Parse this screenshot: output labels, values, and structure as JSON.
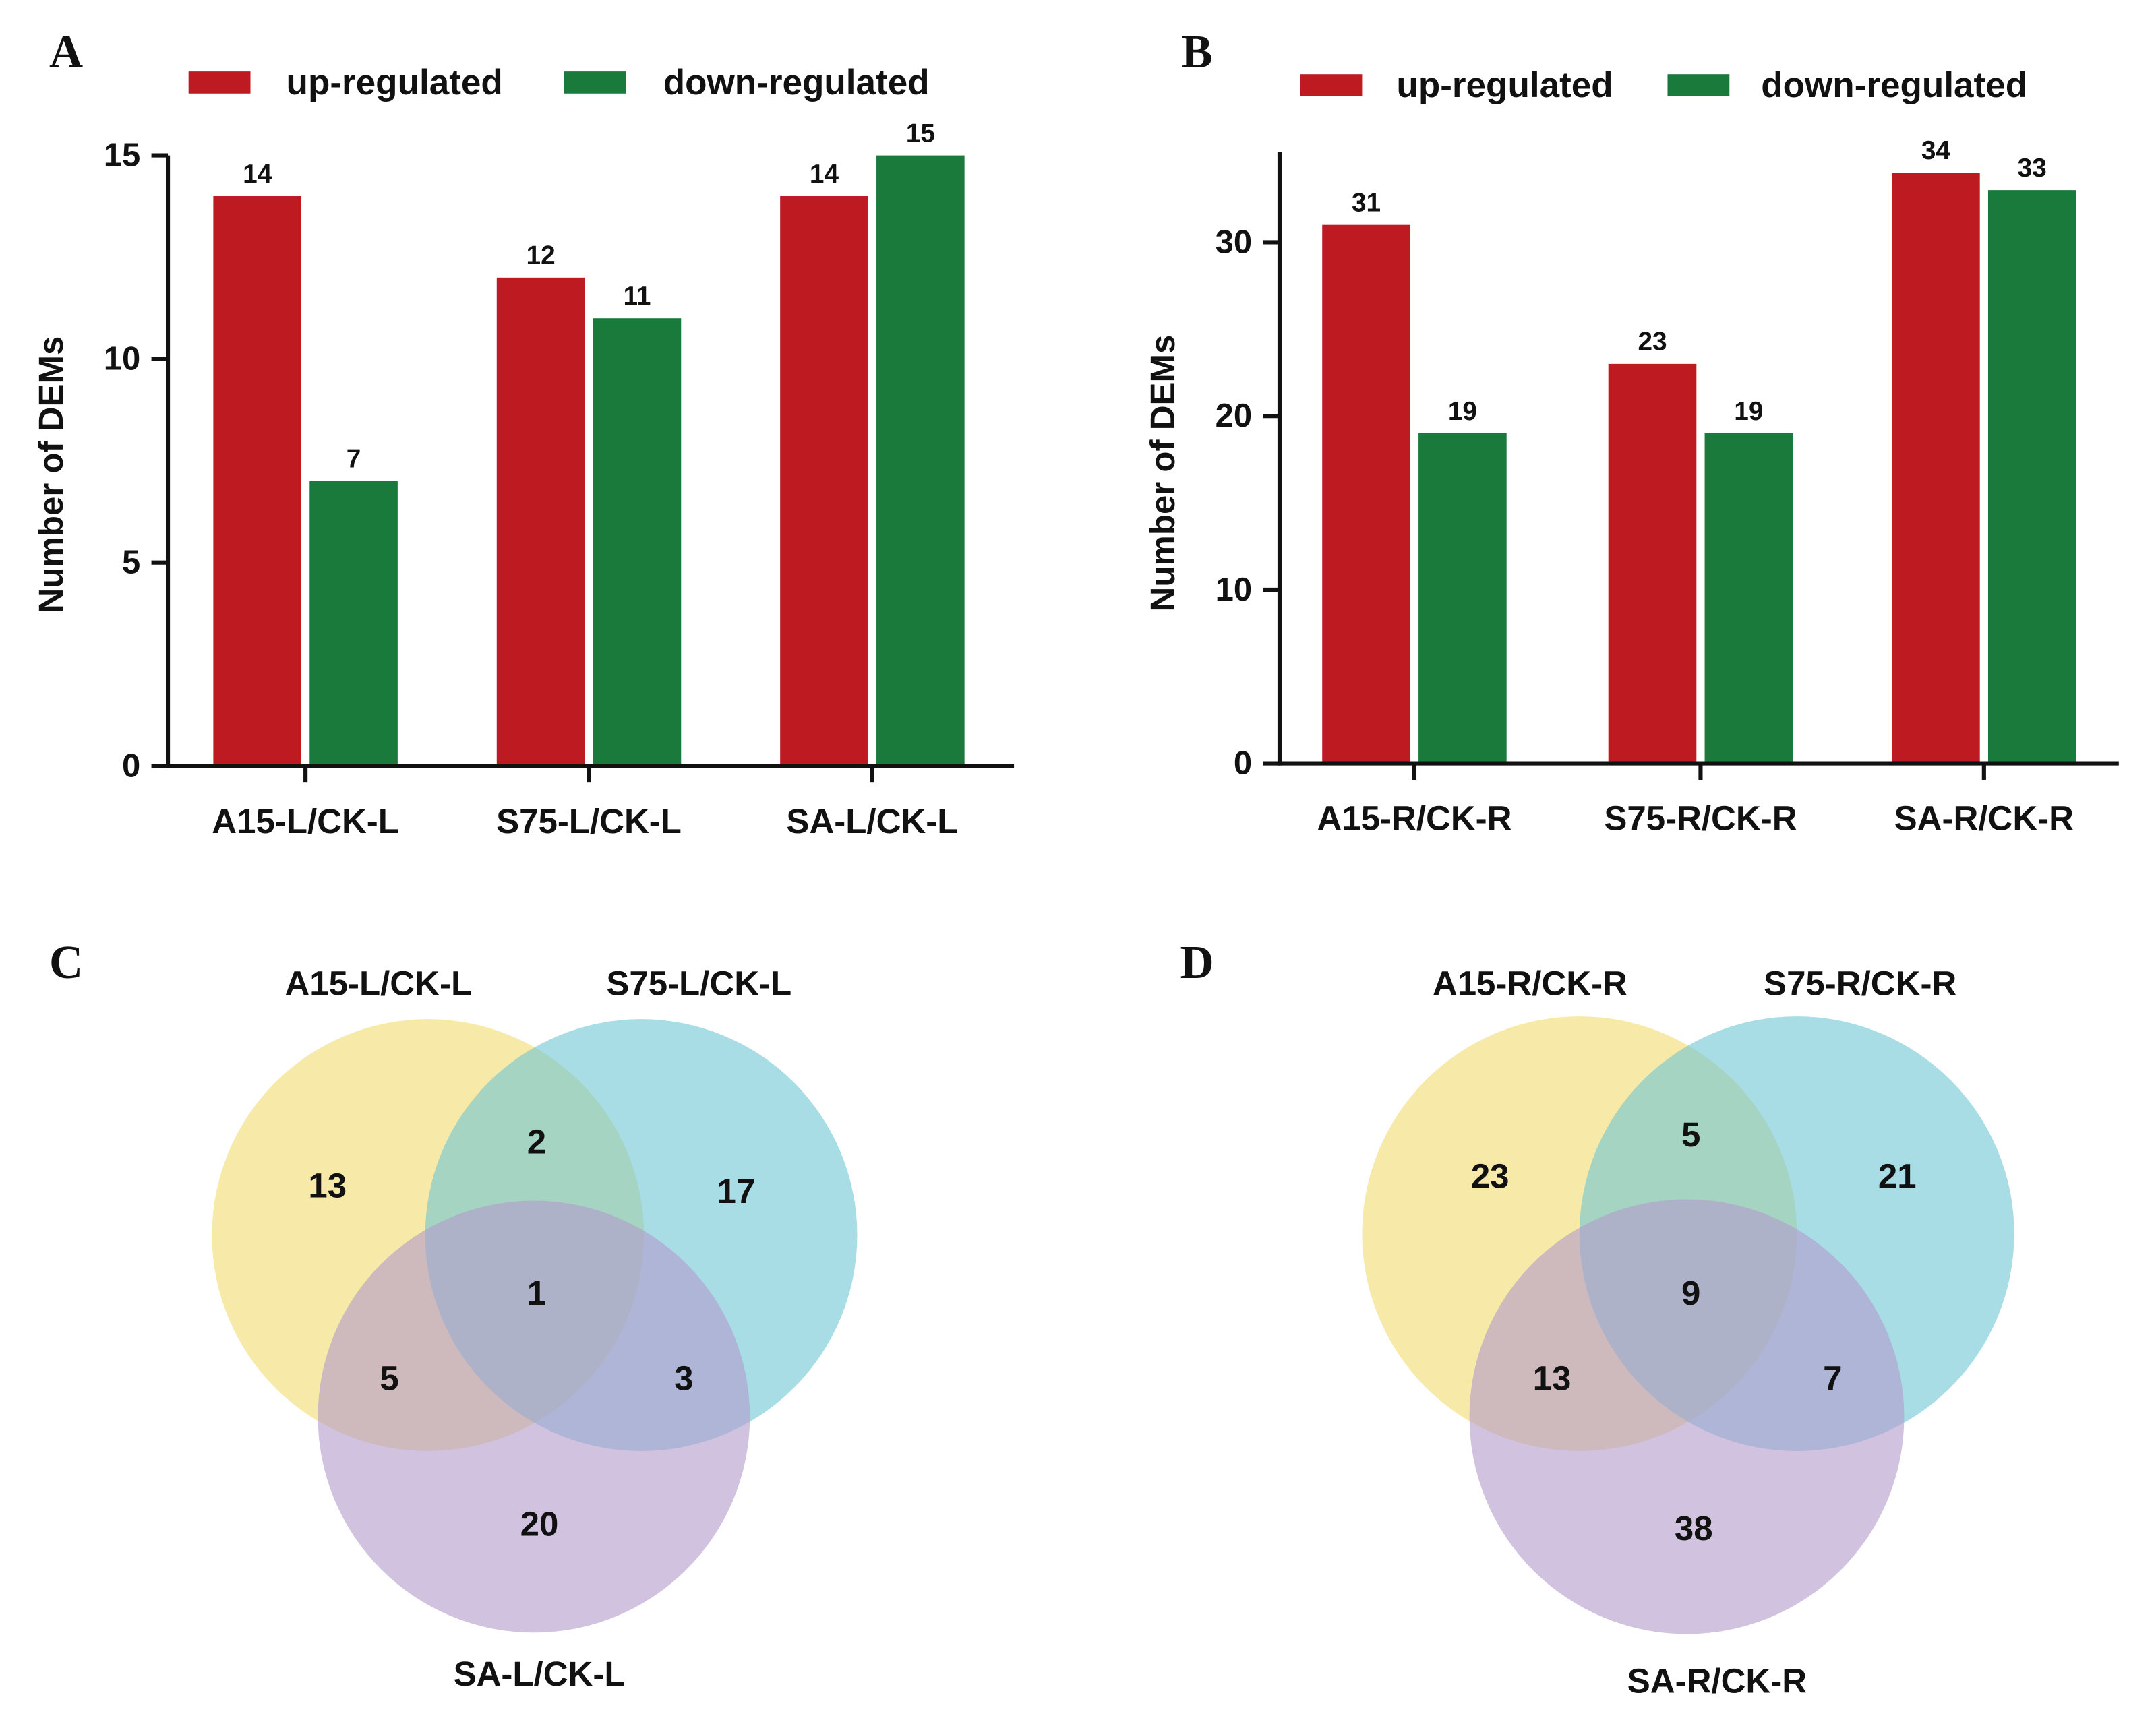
{
  "colors": {
    "up": "#BE1A22",
    "down": "#1A7A3B",
    "venn": [
      "#F2DA6E",
      "#6EC6D4",
      "#B39BCB"
    ]
  },
  "chart_data": [
    {
      "panel": "A",
      "type": "bar",
      "categories": [
        "A15-L/CK-L",
        "S75-L/CK-L",
        "SA-L/CK-L"
      ],
      "series": [
        {
          "name": "up-regulated",
          "values": [
            14,
            12,
            14
          ]
        },
        {
          "name": "down-regulated",
          "values": [
            7,
            11,
            15
          ]
        }
      ],
      "ylabel": "Number of DEMs",
      "ylim": [
        0,
        15
      ],
      "yticks": [
        0,
        5,
        10,
        15
      ],
      "legend": "top"
    },
    {
      "panel": "B",
      "type": "bar",
      "categories": [
        "A15-R/CK-R",
        "S75-R/CK-R",
        "SA-R/CK-R"
      ],
      "series": [
        {
          "name": "up-regulated",
          "values": [
            31,
            23,
            34
          ]
        },
        {
          "name": "down-regulated",
          "values": [
            19,
            19,
            33
          ]
        }
      ],
      "ylabel": "Number of DEMs",
      "ylim": [
        0,
        35
      ],
      "yticks": [
        0,
        10,
        20,
        30
      ],
      "legend": "top"
    },
    {
      "panel": "C",
      "type": "venn",
      "sets": [
        "A15-L/CK-L",
        "S75-L/CK-L",
        "SA-L/CK-L"
      ],
      "regions": {
        "A_only": 13,
        "B_only": 17,
        "C_only": 20,
        "AB": 2,
        "AC": 5,
        "BC": 3,
        "ABC": 1
      }
    },
    {
      "panel": "D",
      "type": "venn",
      "sets": [
        "A15-R/CK-R",
        "S75-R/CK-R",
        "SA-R/CK-R"
      ],
      "regions": {
        "A_only": 23,
        "B_only": 21,
        "C_only": 38,
        "AB": 5,
        "AC": 13,
        "BC": 7,
        "ABC": 9
      }
    }
  ]
}
